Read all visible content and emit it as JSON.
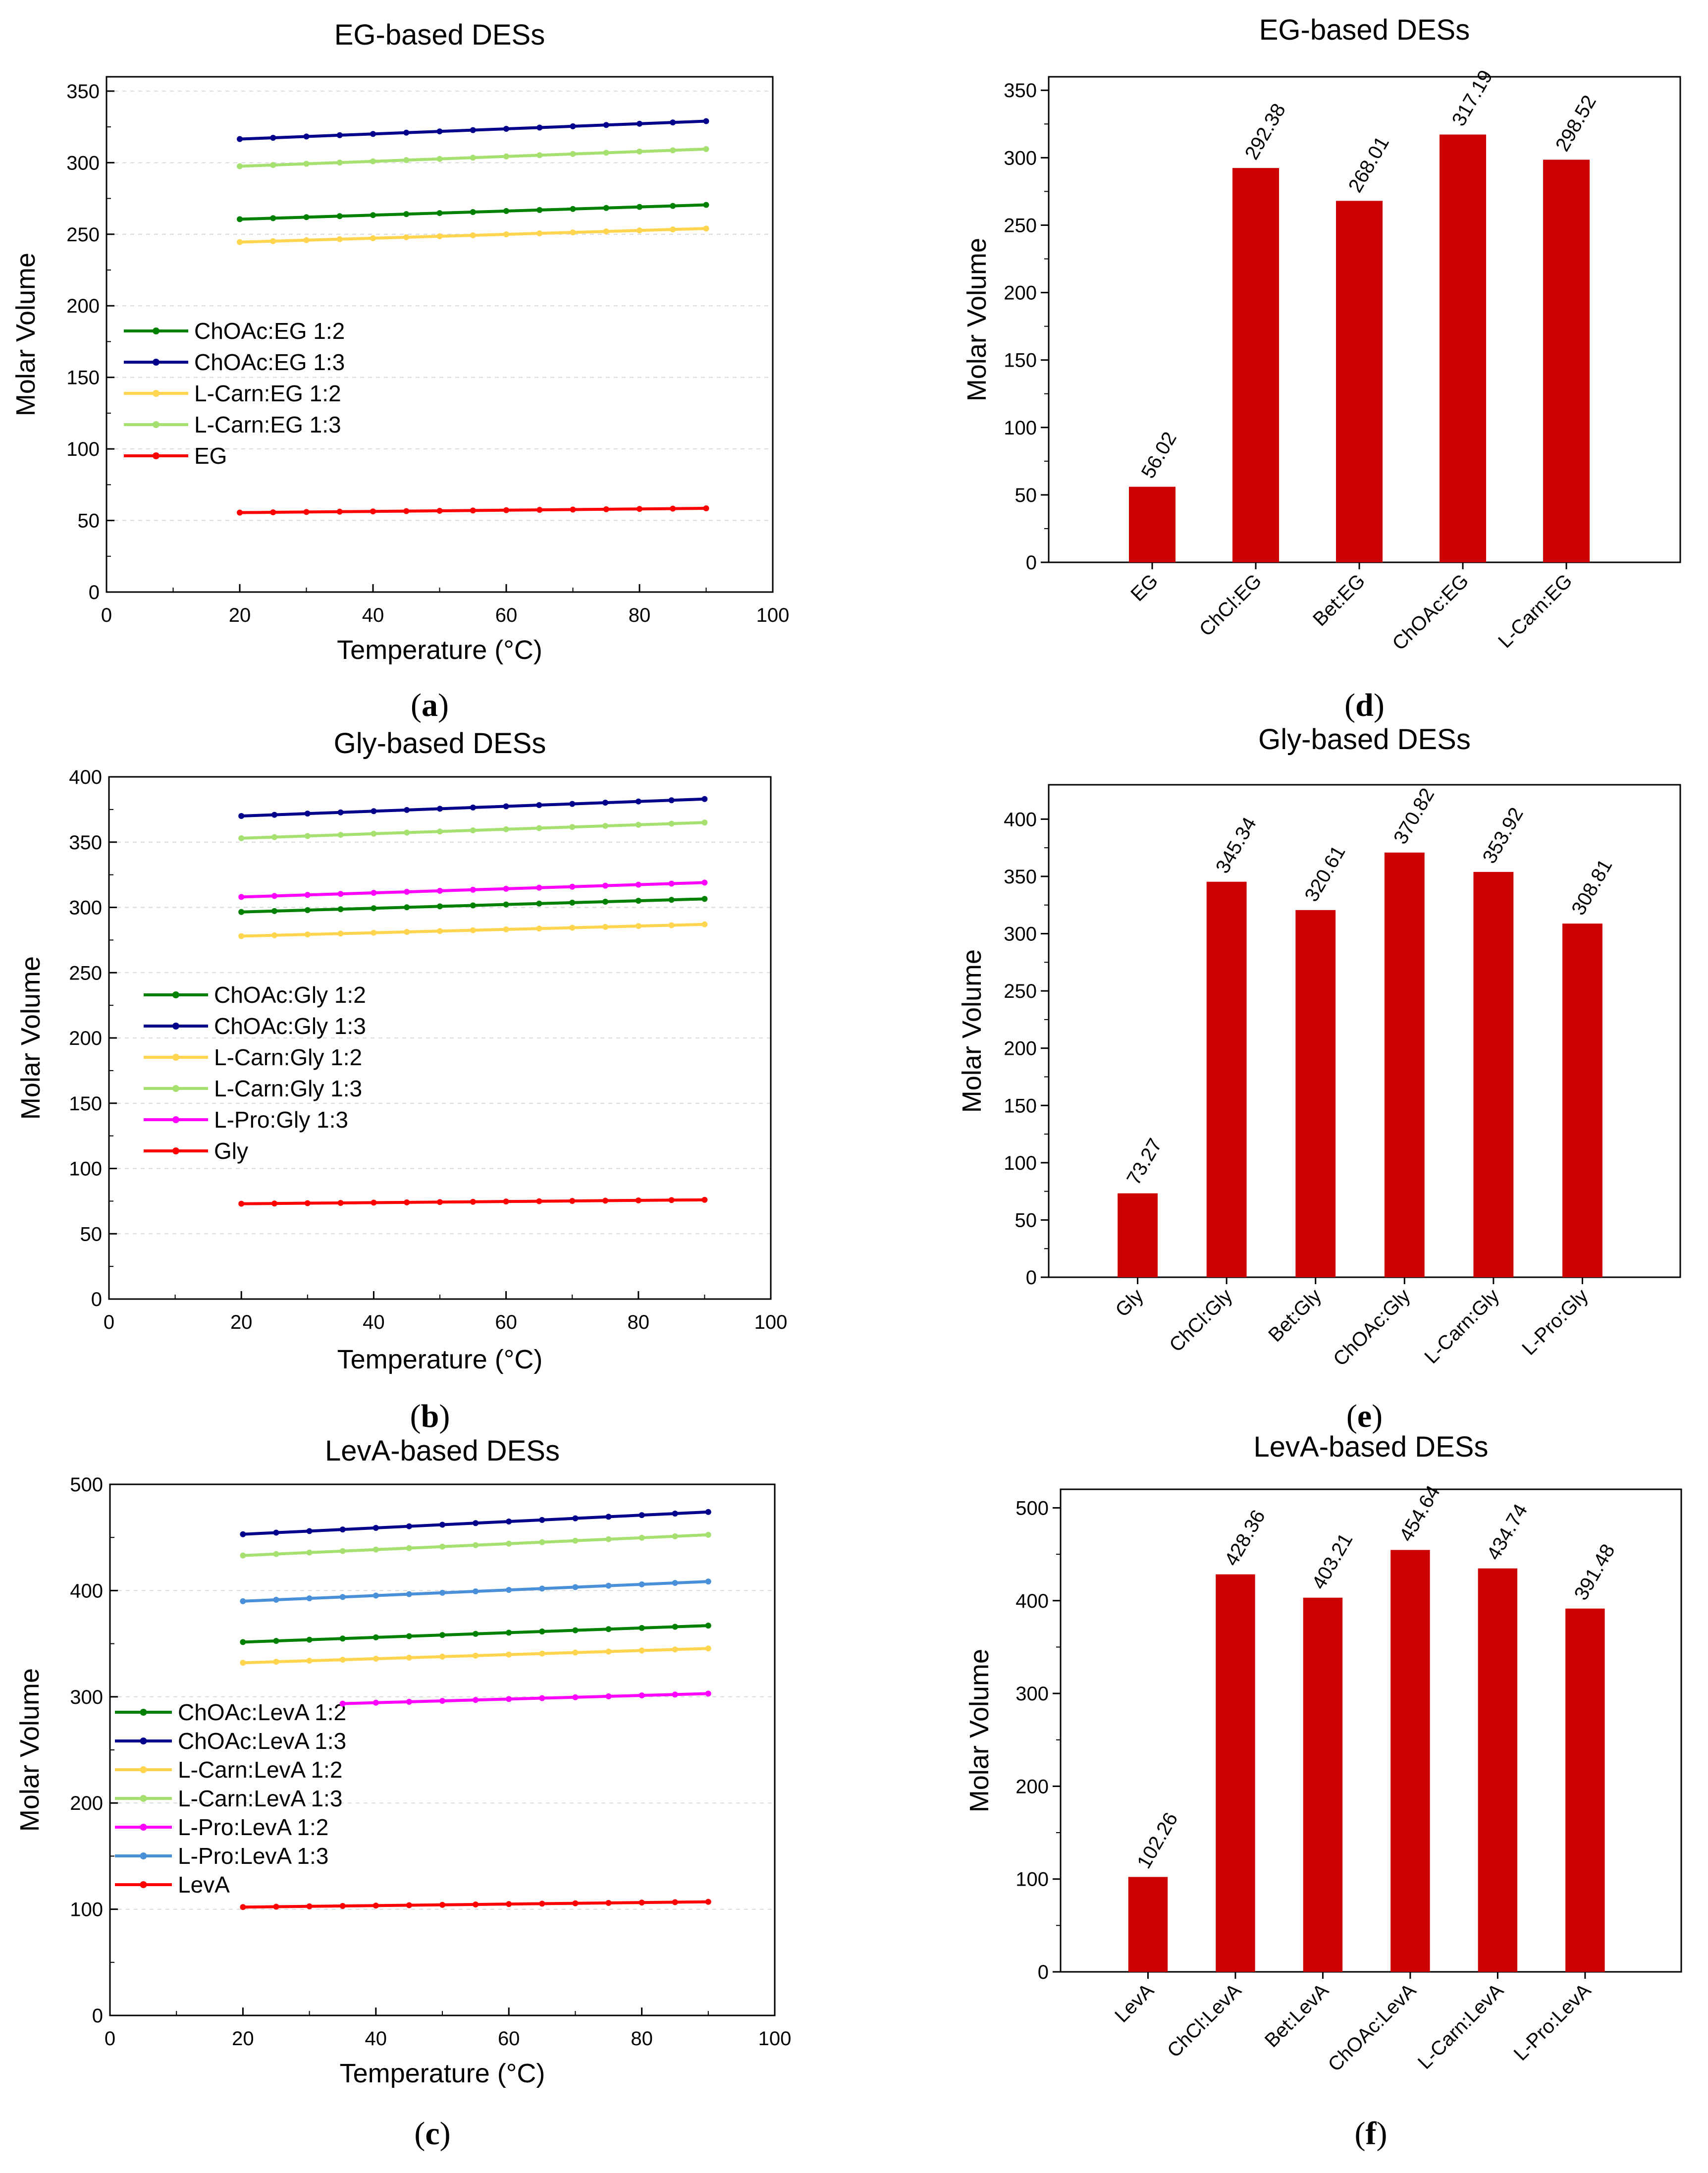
{
  "chart_data": [
    {
      "type": "line",
      "title": "EG-based DESs",
      "xlabel": "Temperature (°C)",
      "ylabel": "Molar Volume",
      "caption": "a",
      "xlim": [
        0,
        100
      ],
      "ylim": [
        0,
        360
      ],
      "xticks": [
        0,
        20,
        40,
        60,
        80,
        100
      ],
      "yticks": [
        0,
        50,
        100,
        150,
        200,
        250,
        300,
        350
      ],
      "x": [
        20,
        25,
        30,
        35,
        40,
        45,
        50,
        55,
        60,
        65,
        70,
        75,
        80,
        85,
        90
      ],
      "series": [
        {
          "name": "ChOAc:EG 1:2",
          "color": "#008000",
          "start": 260.5,
          "end": 270.5
        },
        {
          "name": "ChOAc:EG 1:3",
          "color": "#00008B",
          "start": 316.5,
          "end": 329.0
        },
        {
          "name": "L-Carn:EG 1:2",
          "color": "#FFD54F",
          "start": 244.5,
          "end": 254.0
        },
        {
          "name": "L-Carn:EG 1:3",
          "color": "#A6E070",
          "start": 297.5,
          "end": 309.5
        },
        {
          "name": "EG",
          "color": "#FF0000",
          "start": 55.5,
          "end": 58.5
        }
      ]
    },
    {
      "type": "line",
      "title": "Gly-based DESs",
      "xlabel": "Temperature (°C)",
      "ylabel": "Molar Volume",
      "caption": "b",
      "xlim": [
        0,
        100
      ],
      "ylim": [
        0,
        400
      ],
      "xticks": [
        0,
        20,
        40,
        60,
        80,
        100
      ],
      "yticks": [
        0,
        50,
        100,
        150,
        200,
        250,
        300,
        350,
        400
      ],
      "x": [
        20,
        25,
        30,
        35,
        40,
        45,
        50,
        55,
        60,
        65,
        70,
        75,
        80,
        85,
        90
      ],
      "series": [
        {
          "name": "ChOAc:Gly 1:2",
          "color": "#008000",
          "start": 296.5,
          "end": 306.5
        },
        {
          "name": "ChOAc:Gly 1:3",
          "color": "#00008B",
          "start": 370.0,
          "end": 383.0
        },
        {
          "name": "L-Carn:Gly 1:2",
          "color": "#FFD54F",
          "start": 278.0,
          "end": 287.0
        },
        {
          "name": "L-Carn:Gly 1:3",
          "color": "#A6E070",
          "start": 353.0,
          "end": 365.0
        },
        {
          "name": "L-Pro:Gly 1:3",
          "color": "#FF00FF",
          "start": 308.0,
          "end": 319.0
        },
        {
          "name": "Gly",
          "color": "#FF0000",
          "start": 73.0,
          "end": 76.0
        }
      ]
    },
    {
      "type": "line",
      "title": "LevA-based DESs",
      "xlabel": "Temperature (°C)",
      "ylabel": "Molar Volume",
      "caption": "c",
      "xlim": [
        0,
        100
      ],
      "ylim": [
        0,
        500
      ],
      "xticks": [
        0,
        20,
        40,
        60,
        80,
        100
      ],
      "yticks": [
        0,
        100,
        200,
        300,
        400,
        500
      ],
      "x": [
        20,
        25,
        30,
        35,
        40,
        45,
        50,
        55,
        60,
        65,
        70,
        75,
        80,
        85,
        90
      ],
      "series": [
        {
          "name": "ChOAc:LevA 1:2",
          "color": "#008000",
          "start": 351.5,
          "end": 367.0
        },
        {
          "name": "ChOAc:LevA 1:3",
          "color": "#00008B",
          "start": 453.0,
          "end": 474.0
        },
        {
          "name": "L-Carn:LevA 1:2",
          "color": "#FFD54F",
          "start": 332.0,
          "end": 345.5
        },
        {
          "name": "L-Carn:LevA 1:3",
          "color": "#A6E070",
          "start": 433.0,
          "end": 452.5
        },
        {
          "name": "L-Pro:LevA 1:2",
          "color": "#FF00FF",
          "start": 291.0,
          "end": 303.0,
          "xstart": 35
        },
        {
          "name": "L-Pro:LevA 1:3",
          "color": "#4A90D9",
          "start": 390.0,
          "end": 408.5
        },
        {
          "name": "LevA",
          "color": "#FF0000",
          "start": 102.0,
          "end": 107.0
        }
      ]
    },
    {
      "type": "bar",
      "title": "EG-based DESs",
      "ylabel": "Molar Volume",
      "caption": "d",
      "ylim": [
        0,
        360
      ],
      "yticks": [
        0,
        50,
        100,
        150,
        200,
        250,
        300,
        350
      ],
      "categories": [
        "EG",
        "ChCl:EG",
        "Bet:EG",
        "ChOAc:EG",
        "L-Carn:EG"
      ],
      "values": [
        56.02,
        292.38,
        268.01,
        317.19,
        298.52
      ],
      "labels": [
        "56.02",
        "292.38",
        "268.01",
        "317.19",
        "298.52"
      ],
      "color": "#CC0000"
    },
    {
      "type": "bar",
      "title": "Gly-based DESs",
      "ylabel": "Molar Volume",
      "caption": "e",
      "ylim": [
        0,
        430
      ],
      "yticks": [
        0,
        50,
        100,
        150,
        200,
        250,
        300,
        350,
        400
      ],
      "categories": [
        "Gly",
        "ChCl:Gly",
        "Bet:Gly",
        "ChOAc:Gly",
        "L-Carn:Gly",
        "L-Pro:Gly"
      ],
      "values": [
        73.27,
        345.34,
        320.61,
        370.82,
        353.92,
        308.81
      ],
      "labels": [
        "73.27",
        "345.34",
        "320.61",
        "370.82",
        "353.92",
        "308.81"
      ],
      "color": "#CC0000"
    },
    {
      "type": "bar",
      "title": "LevA-based DESs",
      "ylabel": "Molar Volume",
      "caption": "f",
      "ylim": [
        0,
        520
      ],
      "yticks": [
        0,
        100,
        200,
        300,
        400,
        500
      ],
      "categories": [
        "LevA",
        "ChCl:LevA",
        "Bet:LevA",
        "ChOAc:LevA",
        "L-Carn:LevA",
        "L-Pro:LevA"
      ],
      "values": [
        102.26,
        428.36,
        403.21,
        454.64,
        434.74,
        391.48
      ],
      "labels": [
        "102.26",
        "428.36",
        "403.21",
        "454.64",
        "434.74",
        "391.48"
      ],
      "color": "#CC0000"
    }
  ]
}
